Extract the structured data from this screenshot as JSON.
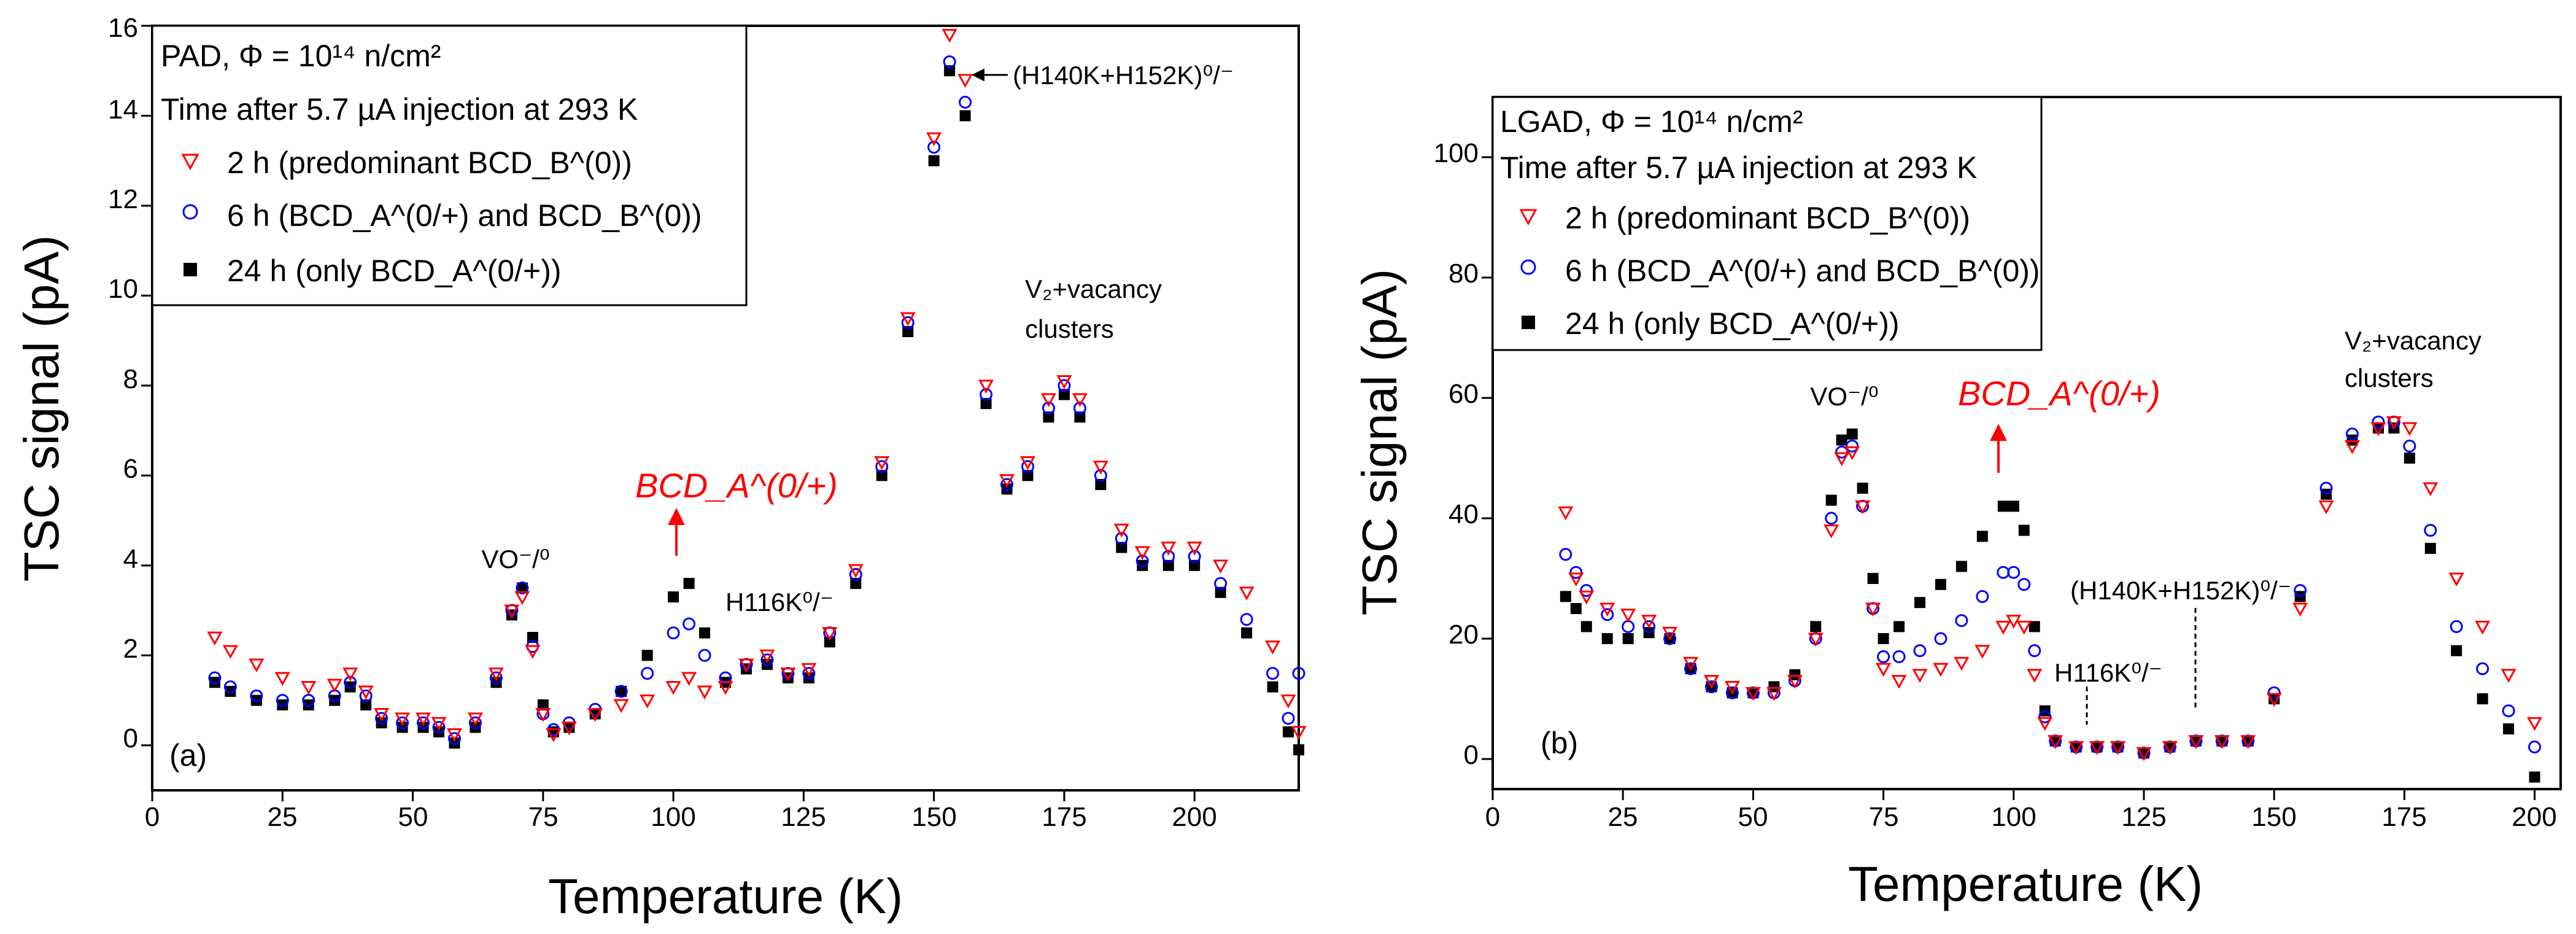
{
  "chart_data": [
    {
      "type": "scatter",
      "panel_label": "(a)",
      "xlabel": "Temperature (K)",
      "ylabel": "TSC signal (pA)",
      "xlim": [
        0,
        220
      ],
      "ylim": [
        -1,
        16
      ],
      "xticks": [
        "0",
        "25",
        "50",
        "75",
        "100",
        "125",
        "150",
        "175",
        "200"
      ],
      "yticks": [
        "0",
        "2",
        "4",
        "6",
        "8",
        "10",
        "12",
        "14",
        "16"
      ],
      "legend": {
        "title_line1": "PAD, Φ = 10¹⁴ n/cm²",
        "title_line2": "Time after 5.7 µA injection at 293 K",
        "entries": [
          "2 h (predominant BCD_B^(0))",
          "6 h (BCD_A^(0/+) and BCD_B^(0))",
          "24 h (only BCD_A^(0/+))"
        ]
      },
      "annotations": {
        "vo": "VO⁻/⁰",
        "bcd_a": "BCD_A^(0/+)",
        "h116k": "H116K⁰/⁻",
        "h140k": "(H140K+H152K)⁰/⁻",
        "v2_line1": "V₂+vacancy",
        "v2_line2": "clusters"
      },
      "series": [
        {
          "name": "2 h",
          "color": "#ff0000",
          "marker": "triangle-down-open",
          "x": [
            12,
            15,
            20,
            25,
            30,
            35,
            38,
            41,
            44,
            48,
            52,
            55,
            58,
            62,
            66,
            69,
            71,
            73,
            75,
            77,
            80,
            85,
            90,
            95,
            100,
            103,
            106,
            110,
            114,
            118,
            122,
            126,
            130,
            135,
            140,
            145,
            150,
            153,
            156,
            160,
            164,
            168,
            172,
            175,
            178,
            182,
            186,
            190,
            195,
            200,
            205,
            210,
            215,
            218,
            220
          ],
          "y": [
            2.4,
            2.1,
            1.8,
            1.5,
            1.3,
            1.35,
            1.6,
            1.2,
            0.7,
            0.6,
            0.6,
            0.5,
            0.25,
            0.6,
            1.6,
            3.0,
            3.3,
            2.1,
            0.7,
            0.25,
            0.4,
            0.7,
            0.9,
            1.0,
            1.3,
            1.5,
            1.2,
            1.3,
            1.8,
            2.0,
            1.6,
            1.7,
            2.5,
            3.9,
            6.3,
            9.5,
            13.5,
            15.8,
            14.8,
            8.0,
            5.9,
            6.3,
            7.7,
            8.1,
            7.7,
            6.2,
            4.8,
            4.3,
            4.4,
            4.4,
            4.0,
            3.4,
            2.2,
            1.0,
            0.3
          ]
        },
        {
          "name": "6 h",
          "color": "#0000ff",
          "marker": "circle-open",
          "x": [
            12,
            15,
            20,
            25,
            30,
            35,
            38,
            41,
            44,
            48,
            52,
            55,
            58,
            62,
            66,
            69,
            71,
            73,
            75,
            77,
            80,
            85,
            90,
            95,
            100,
            103,
            106,
            110,
            114,
            118,
            122,
            126,
            130,
            135,
            140,
            145,
            150,
            153,
            156,
            160,
            164,
            168,
            172,
            175,
            178,
            182,
            186,
            190,
            195,
            200,
            205,
            210,
            215,
            218,
            220
          ],
          "y": [
            1.5,
            1.3,
            1.1,
            1.0,
            1.0,
            1.1,
            1.4,
            1.1,
            0.6,
            0.5,
            0.5,
            0.4,
            0.15,
            0.5,
            1.5,
            3.0,
            3.5,
            2.2,
            0.7,
            0.35,
            0.5,
            0.8,
            1.2,
            1.6,
            2.5,
            2.7,
            2.0,
            1.5,
            1.8,
            1.9,
            1.6,
            1.6,
            2.5,
            3.8,
            6.2,
            9.4,
            13.3,
            15.2,
            14.3,
            7.8,
            5.8,
            6.2,
            7.5,
            8.0,
            7.5,
            6.0,
            4.6,
            4.1,
            4.2,
            4.2,
            3.6,
            2.8,
            1.6,
            0.6,
            1.6
          ]
        },
        {
          "name": "24 h",
          "color": "#000000",
          "marker": "square-filled",
          "x": [
            12,
            15,
            20,
            25,
            30,
            35,
            38,
            41,
            44,
            48,
            52,
            55,
            58,
            62,
            66,
            69,
            71,
            73,
            75,
            77,
            80,
            85,
            90,
            95,
            100,
            103,
            106,
            110,
            114,
            118,
            122,
            126,
            130,
            135,
            140,
            145,
            150,
            153,
            156,
            160,
            164,
            168,
            172,
            175,
            178,
            182,
            186,
            190,
            195,
            200,
            205,
            210,
            215,
            218,
            220
          ],
          "y": [
            1.4,
            1.2,
            1.0,
            0.9,
            0.9,
            1.0,
            1.3,
            0.9,
            0.5,
            0.4,
            0.4,
            0.3,
            0.05,
            0.4,
            1.4,
            2.9,
            3.5,
            2.4,
            0.9,
            0.3,
            0.4,
            0.7,
            1.2,
            2.0,
            3.3,
            3.6,
            2.5,
            1.4,
            1.7,
            1.8,
            1.5,
            1.5,
            2.3,
            3.6,
            6.0,
            9.2,
            13.0,
            15.0,
            14.0,
            7.6,
            5.7,
            6.0,
            7.3,
            7.8,
            7.3,
            5.8,
            4.4,
            4.0,
            4.0,
            4.0,
            3.4,
            2.5,
            1.3,
            0.3,
            -0.1
          ]
        }
      ]
    },
    {
      "type": "scatter",
      "panel_label": "(b)",
      "xlabel": "Temperature (K)",
      "ylabel": "TSC signal (pA)",
      "xlim": [
        0,
        205
      ],
      "ylim": [
        -5,
        110
      ],
      "xticks": [
        "0",
        "25",
        "50",
        "75",
        "100",
        "125",
        "150",
        "175",
        "200"
      ],
      "yticks": [
        "0",
        "20",
        "40",
        "60",
        "80",
        "100"
      ],
      "legend": {
        "title_line1": "LGAD, Φ = 10¹⁴ n/cm²",
        "title_line2": "Time after 5.7 µA injection at 293 K",
        "entries": [
          "2 h (predominant BCD_B^(0))",
          "6 h (BCD_A^(0/+) and BCD_B^(0))",
          "24 h (only BCD_A^(0/+))"
        ]
      },
      "annotations": {
        "vo": "VO⁻/⁰",
        "bcd_a": "BCD_A^(0/+)",
        "h116k": "H116K⁰/⁻",
        "h140k": "(H140K+H152K)⁰/⁻",
        "v2_line1": "V₂+vacancy",
        "v2_line2": "clusters"
      },
      "series": [
        {
          "name": "2 h",
          "color": "#ff0000",
          "marker": "triangle-down-open",
          "x": [
            14,
            16,
            18,
            22,
            26,
            30,
            34,
            38,
            42,
            46,
            50,
            54,
            58,
            62,
            65,
            67,
            69,
            71,
            73,
            75,
            78,
            82,
            86,
            90,
            94,
            98,
            100,
            102,
            104,
            106,
            108,
            112,
            116,
            120,
            125,
            130,
            135,
            140,
            145,
            150,
            155,
            160,
            165,
            170,
            173,
            176,
            180,
            185,
            190,
            195,
            200
          ],
          "y": [
            41,
            30,
            27,
            25,
            24,
            23,
            21,
            16,
            13,
            12,
            11,
            11,
            13,
            20,
            38,
            50,
            51,
            42,
            25,
            15,
            13,
            14,
            15,
            16,
            18,
            22,
            23,
            22,
            14,
            6,
            3,
            2,
            2,
            2,
            1,
            2,
            3,
            3,
            3,
            10,
            25,
            42,
            52,
            55,
            56,
            55,
            45,
            30,
            22,
            14,
            6
          ]
        },
        {
          "name": "6 h",
          "color": "#0000ff",
          "marker": "circle-open",
          "x": [
            14,
            16,
            18,
            22,
            26,
            30,
            34,
            38,
            42,
            46,
            50,
            54,
            58,
            62,
            65,
            67,
            69,
            71,
            73,
            75,
            78,
            82,
            86,
            90,
            94,
            98,
            100,
            102,
            104,
            106,
            108,
            112,
            116,
            120,
            125,
            130,
            135,
            140,
            145,
            150,
            155,
            160,
            165,
            170,
            173,
            176,
            180,
            185,
            190,
            195,
            200
          ],
          "y": [
            34,
            31,
            28,
            24,
            22,
            22,
            20,
            15,
            12,
            11,
            11,
            11,
            13,
            20,
            40,
            51,
            52,
            42,
            25,
            17,
            17,
            18,
            20,
            23,
            27,
            31,
            31,
            29,
            18,
            7,
            3,
            2,
            2,
            2,
            1,
            2,
            3,
            3,
            3,
            11,
            28,
            45,
            54,
            56,
            56,
            52,
            38,
            22,
            15,
            8,
            2
          ]
        },
        {
          "name": "24 h",
          "color": "#000000",
          "marker": "square-filled",
          "x": [
            14,
            16,
            18,
            22,
            26,
            30,
            34,
            38,
            42,
            46,
            50,
            54,
            58,
            62,
            65,
            67,
            69,
            71,
            73,
            75,
            78,
            82,
            86,
            90,
            94,
            98,
            100,
            102,
            104,
            106,
            108,
            112,
            116,
            120,
            125,
            130,
            135,
            140,
            145,
            150,
            155,
            160,
            165,
            170,
            173,
            176,
            180,
            185,
            190,
            195,
            200
          ],
          "y": [
            27,
            25,
            22,
            20,
            20,
            21,
            20,
            15,
            12,
            11,
            11,
            12,
            14,
            22,
            43,
            53,
            54,
            45,
            30,
            20,
            22,
            26,
            29,
            32,
            37,
            42,
            42,
            38,
            22,
            8,
            3,
            2,
            2,
            2,
            1,
            2,
            3,
            3,
            3,
            10,
            27,
            44,
            53,
            55,
            55,
            50,
            35,
            18,
            10,
            5,
            -3
          ]
        }
      ]
    }
  ]
}
